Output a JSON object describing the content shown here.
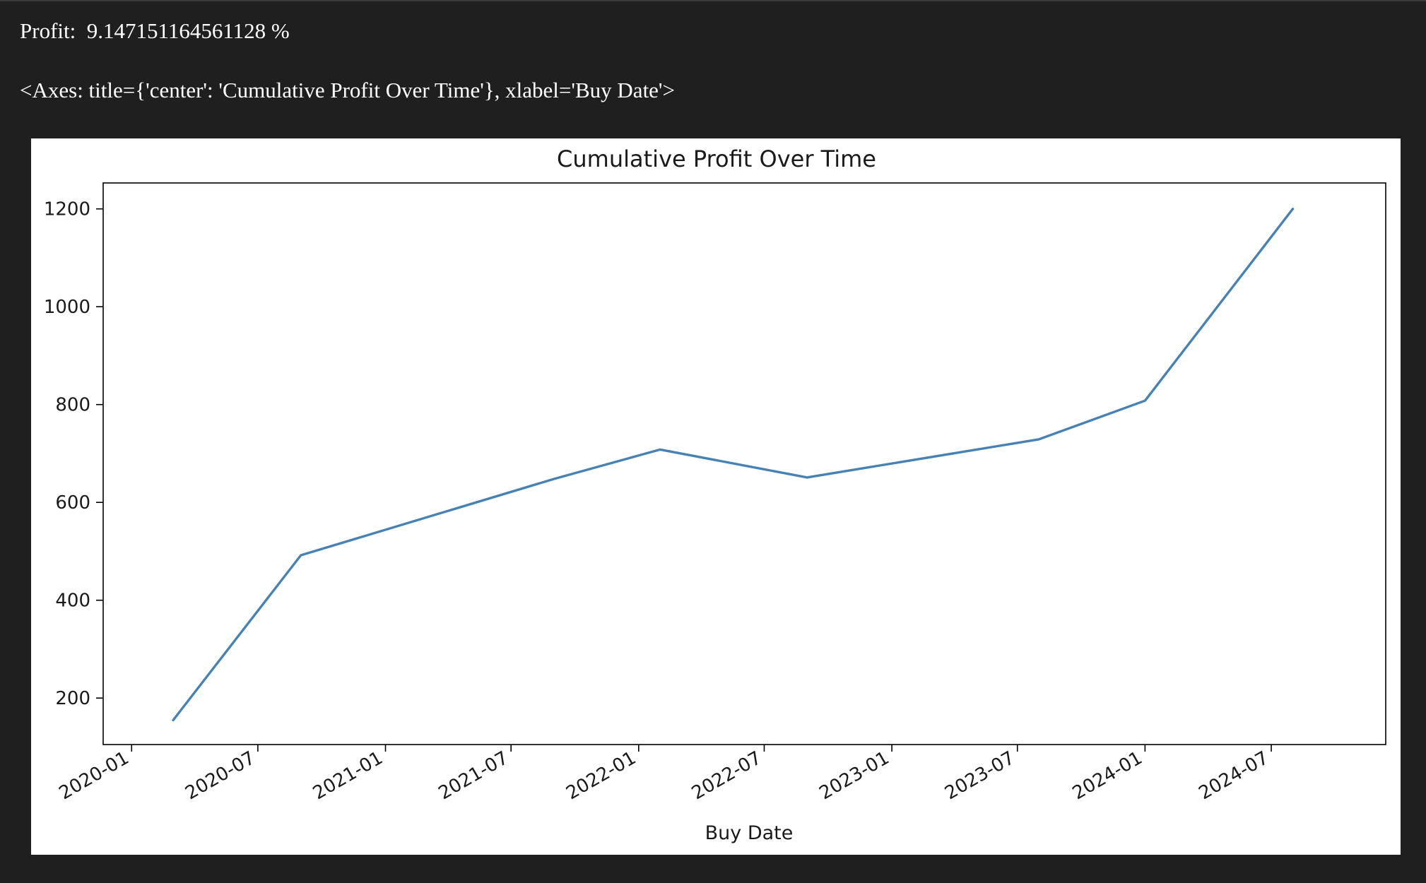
{
  "output": {
    "profit_label": "Profit:",
    "profit_value": "9.147151164561128 %",
    "axes_repr": "<Axes: title={'center': 'Cumulative Profit Over Time'}, xlabel='Buy Date'>"
  },
  "chart_data": {
    "type": "line",
    "title": "Cumulative Profit Over Time",
    "xlabel": "Buy Date",
    "ylabel": "",
    "x_type": "date",
    "x": [
      "2020-03-01",
      "2020-09-01",
      "2021-09-01",
      "2022-02-01",
      "2022-09-01",
      "2023-08-01",
      "2024-01-01",
      "2024-08-01"
    ],
    "series": [
      {
        "values": [
          155,
          492,
          648,
          708,
          651,
          729,
          808,
          1200
        ],
        "color": "#4682b4"
      }
    ],
    "xlim": [
      "2019-11-21",
      "2024-12-13"
    ],
    "ylim": [
      105,
      1253
    ],
    "x_ticks": [
      "2020-01-01",
      "2020-07-01",
      "2021-01-01",
      "2021-07-01",
      "2022-01-01",
      "2022-07-01",
      "2023-01-01",
      "2023-07-01",
      "2024-01-01",
      "2024-07-01"
    ],
    "x_tick_labels": [
      "2020-01",
      "2020-07",
      "2021-01",
      "2021-07",
      "2022-01",
      "2022-07",
      "2023-01",
      "2023-07",
      "2024-01",
      "2024-07"
    ],
    "y_ticks": [
      200,
      400,
      600,
      800,
      1000,
      1200
    ],
    "grid": false,
    "legend": "none"
  }
}
